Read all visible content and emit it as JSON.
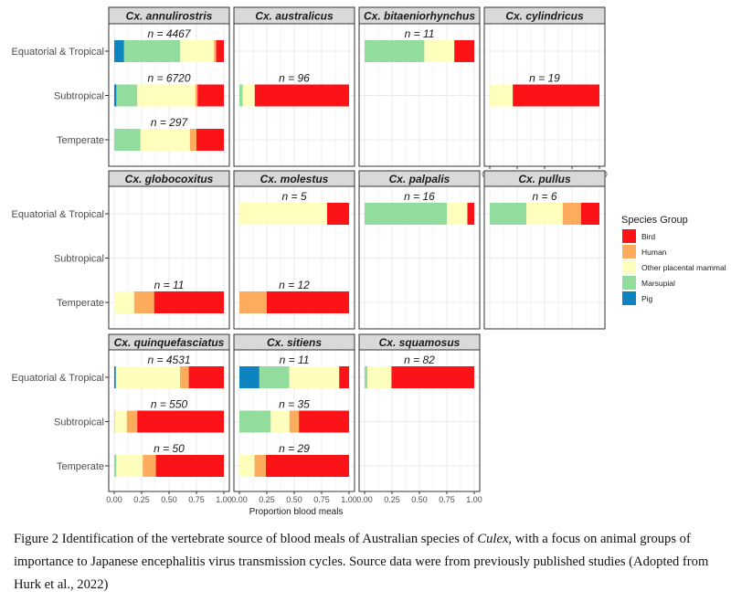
{
  "chart_data": {
    "type": "bar",
    "orientation": "horizontal-stacked-facets",
    "xlabel": "Proportion blood meals",
    "ylabel": "",
    "xlim": [
      0,
      1
    ],
    "x_ticks": [
      "0.00",
      "0.25",
      "0.50",
      "0.75",
      "1.00"
    ],
    "categories": [
      "Equatorial & Tropical",
      "Subtropical",
      "Temperate"
    ],
    "legend": {
      "title": "Species Group",
      "position": "right",
      "items": [
        {
          "name": "Bird",
          "color": "#fc1317"
        },
        {
          "name": "Human",
          "color": "#fdab5c"
        },
        {
          "name": "Other placental mammal",
          "color": "#fefebd"
        },
        {
          "name": "Marsupial",
          "color": "#92dc9e"
        },
        {
          "name": "Pig",
          "color": "#0d84c0"
        }
      ]
    },
    "stack_order": [
      "Pig",
      "Marsupial",
      "Other placental mammal",
      "Human",
      "Bird"
    ],
    "grid": true,
    "panels": [
      {
        "title": "Cx. annulirostris",
        "bars": [
          {
            "category": "Equatorial & Tropical",
            "n": "n = 4467",
            "values": {
              "Pig": 0.09,
              "Marsupial": 0.51,
              "Other placental mammal": 0.31,
              "Human": 0.02,
              "Bird": 0.07
            }
          },
          {
            "category": "Subtropical",
            "n": "n = 6720",
            "values": {
              "Pig": 0.02,
              "Marsupial": 0.19,
              "Other placental mammal": 0.53,
              "Human": 0.02,
              "Bird": 0.24
            }
          },
          {
            "category": "Temperate",
            "n": "n = 297",
            "values": {
              "Pig": 0.0,
              "Marsupial": 0.24,
              "Other placental mammal": 0.45,
              "Human": 0.06,
              "Bird": 0.25
            }
          }
        ]
      },
      {
        "title": "Cx. australicus",
        "bars": [
          {
            "category": "Subtropical",
            "n": "n = 96",
            "values": {
              "Pig": 0.0,
              "Marsupial": 0.03,
              "Other placental mammal": 0.11,
              "Human": 0.0,
              "Bird": 0.86
            }
          }
        ]
      },
      {
        "title": "Cx. bitaeniorhynchus",
        "bars": [
          {
            "category": "Equatorial & Tropical",
            "n": "n = 11",
            "values": {
              "Pig": 0.0,
              "Marsupial": 0.545,
              "Other placental mammal": 0.273,
              "Human": 0.0,
              "Bird": 0.182
            }
          }
        ]
      },
      {
        "title": "Cx. cylindricus",
        "bars": [
          {
            "category": "Subtropical",
            "n": "n = 19",
            "values": {
              "Pig": 0.0,
              "Marsupial": 0.0,
              "Other placental mammal": 0.21,
              "Human": 0.0,
              "Bird": 0.79
            }
          }
        ]
      },
      {
        "title": "Cx. globocoxitus",
        "bars": [
          {
            "category": "Temperate",
            "n": "n = 11",
            "values": {
              "Pig": 0.0,
              "Marsupial": 0.0,
              "Other placental mammal": 0.182,
              "Human": 0.182,
              "Bird": 0.636
            }
          }
        ]
      },
      {
        "title": "Cx. molestus",
        "bars": [
          {
            "category": "Equatorial & Tropical",
            "n": "n = 5",
            "values": {
              "Pig": 0.0,
              "Marsupial": 0.0,
              "Other placental mammal": 0.8,
              "Human": 0.0,
              "Bird": 0.2
            }
          },
          {
            "category": "Temperate",
            "n": "n = 12",
            "values": {
              "Pig": 0.0,
              "Marsupial": 0.0,
              "Other placental mammal": 0.0,
              "Human": 0.25,
              "Bird": 0.75
            }
          }
        ]
      },
      {
        "title": "Cx. palpalis",
        "bars": [
          {
            "category": "Equatorial & Tropical",
            "n": "n = 16",
            "values": {
              "Pig": 0.0,
              "Marsupial": 0.75,
              "Other placental mammal": 0.1875,
              "Human": 0.0,
              "Bird": 0.0625
            }
          }
        ]
      },
      {
        "title": "Cx. pullus",
        "bars": [
          {
            "category": "Equatorial & Tropical",
            "n": "n = 6",
            "values": {
              "Pig": 0.0,
              "Marsupial": 0.333,
              "Other placental mammal": 0.333,
              "Human": 0.167,
              "Bird": 0.167
            }
          }
        ]
      },
      {
        "title": "Cx. quinquefasciatus",
        "bars": [
          {
            "category": "Equatorial & Tropical",
            "n": "n = 4531",
            "values": {
              "Pig": 0.015,
              "Marsupial": 0.0,
              "Other placental mammal": 0.585,
              "Human": 0.08,
              "Bird": 0.32
            }
          },
          {
            "category": "Subtropical",
            "n": "n = 550",
            "values": {
              "Pig": 0.0,
              "Marsupial": 0.005,
              "Other placental mammal": 0.11,
              "Human": 0.095,
              "Bird": 0.79
            }
          },
          {
            "category": "Temperate",
            "n": "n = 50",
            "values": {
              "Pig": 0.0,
              "Marsupial": 0.02,
              "Other placental mammal": 0.24,
              "Human": 0.12,
              "Bird": 0.62
            }
          }
        ]
      },
      {
        "title": "Cx. sitiens",
        "bars": [
          {
            "category": "Equatorial & Tropical",
            "n": "n = 11",
            "values": {
              "Pig": 0.182,
              "Marsupial": 0.273,
              "Other placental mammal": 0.455,
              "Human": 0.0,
              "Bird": 0.09
            }
          },
          {
            "category": "Subtropical",
            "n": "n = 35",
            "values": {
              "Pig": 0.0,
              "Marsupial": 0.286,
              "Other placental mammal": 0.171,
              "Human": 0.086,
              "Bird": 0.457
            }
          },
          {
            "category": "Temperate",
            "n": "n = 29",
            "values": {
              "Pig": 0.0,
              "Marsupial": 0.0,
              "Other placental mammal": 0.138,
              "Human": 0.103,
              "Bird": 0.759
            }
          }
        ]
      },
      {
        "title": "Cx. squamosus",
        "bars": [
          {
            "category": "Equatorial & Tropical",
            "n": "n = 82",
            "values": {
              "Pig": 0.0,
              "Marsupial": 0.025,
              "Other placental mammal": 0.22,
              "Human": 0.0,
              "Bird": 0.755
            }
          }
        ]
      }
    ]
  },
  "caption": {
    "prefix": "Figure 2 Identification of the vertebrate source of blood meals of Australian species of ",
    "italic": "Culex",
    "suffix": ", with a focus on animal groups of importance to Japanese encephalitis virus transmission cycles. Source data were from previously published studies (Adopted from Hurk et al., 2022)"
  }
}
